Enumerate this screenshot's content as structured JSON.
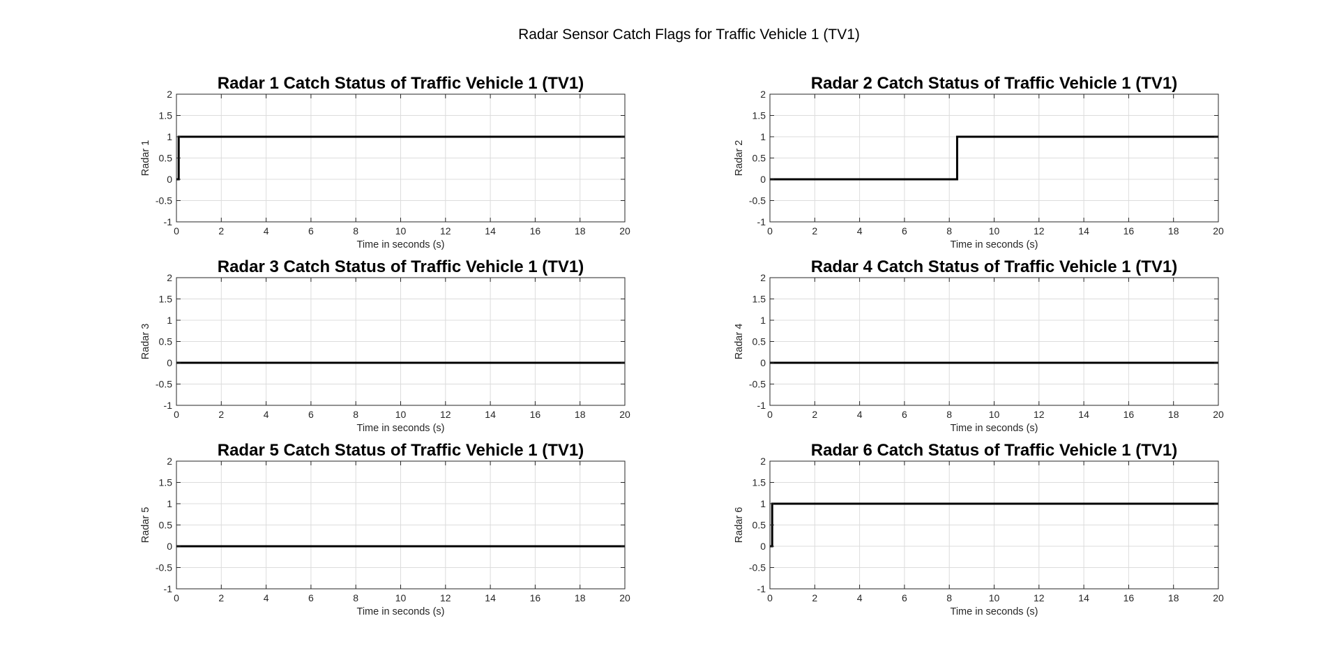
{
  "figure": {
    "title": "Radar Sensor Catch Flags for Traffic Vehicle 1 (TV1)"
  },
  "chart_data": [
    {
      "type": "line",
      "title": "Radar 1 Catch Status of Traffic Vehicle 1 (TV1)",
      "xlabel": "Time in seconds (s)",
      "ylabel": "Radar 1",
      "xlim": [
        0,
        20
      ],
      "ylim": [
        -1,
        2
      ],
      "xticks": [
        0,
        2,
        4,
        6,
        8,
        10,
        12,
        14,
        16,
        18,
        20
      ],
      "yticks": [
        -1,
        -0.5,
        0,
        0.5,
        1,
        1.5,
        2
      ],
      "grid": true,
      "series": [
        {
          "x": [
            0,
            0.1,
            0.1,
            20
          ],
          "y": [
            0,
            0,
            1,
            1
          ],
          "color": "#000000"
        }
      ]
    },
    {
      "type": "line",
      "title": "Radar 2 Catch Status of Traffic Vehicle 1 (TV1)",
      "xlabel": "Time in seconds (s)",
      "ylabel": "Radar 2",
      "xlim": [
        0,
        20
      ],
      "ylim": [
        -1,
        2
      ],
      "xticks": [
        0,
        2,
        4,
        6,
        8,
        10,
        12,
        14,
        16,
        18,
        20
      ],
      "yticks": [
        -1,
        -0.5,
        0,
        0.5,
        1,
        1.5,
        2
      ],
      "grid": true,
      "series": [
        {
          "x": [
            0,
            8.35,
            8.35,
            20
          ],
          "y": [
            0,
            0,
            1,
            1
          ],
          "color": "#000000"
        }
      ]
    },
    {
      "type": "line",
      "title": "Radar 3 Catch Status of Traffic Vehicle 1 (TV1)",
      "xlabel": "Time in seconds (s)",
      "ylabel": "Radar 3",
      "xlim": [
        0,
        20
      ],
      "ylim": [
        -1,
        2
      ],
      "xticks": [
        0,
        2,
        4,
        6,
        8,
        10,
        12,
        14,
        16,
        18,
        20
      ],
      "yticks": [
        -1,
        -0.5,
        0,
        0.5,
        1,
        1.5,
        2
      ],
      "grid": true,
      "series": [
        {
          "x": [
            0,
            20
          ],
          "y": [
            0,
            0
          ],
          "color": "#000000"
        }
      ]
    },
    {
      "type": "line",
      "title": "Radar 4 Catch Status of Traffic Vehicle 1 (TV1)",
      "xlabel": "Time in seconds (s)",
      "ylabel": "Radar 4",
      "xlim": [
        0,
        20
      ],
      "ylim": [
        -1,
        2
      ],
      "xticks": [
        0,
        2,
        4,
        6,
        8,
        10,
        12,
        14,
        16,
        18,
        20
      ],
      "yticks": [
        -1,
        -0.5,
        0,
        0.5,
        1,
        1.5,
        2
      ],
      "grid": true,
      "series": [
        {
          "x": [
            0,
            20
          ],
          "y": [
            0,
            0
          ],
          "color": "#000000"
        }
      ]
    },
    {
      "type": "line",
      "title": "Radar 5 Catch Status of Traffic Vehicle 1 (TV1)",
      "xlabel": "Time in seconds (s)",
      "ylabel": "Radar 5",
      "xlim": [
        0,
        20
      ],
      "ylim": [
        -1,
        2
      ],
      "xticks": [
        0,
        2,
        4,
        6,
        8,
        10,
        12,
        14,
        16,
        18,
        20
      ],
      "yticks": [
        -1,
        -0.5,
        0,
        0.5,
        1,
        1.5,
        2
      ],
      "grid": true,
      "series": [
        {
          "x": [
            0,
            20
          ],
          "y": [
            0,
            0
          ],
          "color": "#000000"
        }
      ]
    },
    {
      "type": "line",
      "title": "Radar 6 Catch Status of Traffic Vehicle 1 (TV1)",
      "xlabel": "Time in seconds (s)",
      "ylabel": "Radar 6",
      "xlim": [
        0,
        20
      ],
      "ylim": [
        -1,
        2
      ],
      "xticks": [
        0,
        2,
        4,
        6,
        8,
        10,
        12,
        14,
        16,
        18,
        20
      ],
      "yticks": [
        -1,
        -0.5,
        0,
        0.5,
        1,
        1.5,
        2
      ],
      "grid": true,
      "series": [
        {
          "x": [
            0,
            0.1,
            0.1,
            20
          ],
          "y": [
            0,
            0,
            1,
            1
          ],
          "color": "#000000"
        }
      ]
    }
  ]
}
